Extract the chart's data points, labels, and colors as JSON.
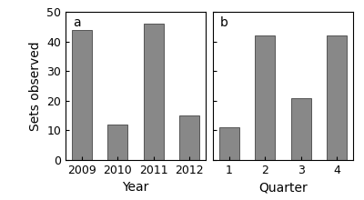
{
  "panel_a": {
    "categories": [
      "2009",
      "2010",
      "2011",
      "2012"
    ],
    "values": [
      44,
      12,
      46,
      15
    ],
    "xlabel": "Year",
    "label": "a"
  },
  "panel_b": {
    "categories": [
      "1",
      "2",
      "3",
      "4"
    ],
    "values": [
      11,
      42,
      21,
      42
    ],
    "xlabel": "Quarter",
    "label": "b"
  },
  "ylabel": "Sets observed",
  "ylim": [
    0,
    50
  ],
  "yticks": [
    0,
    10,
    20,
    30,
    40,
    50
  ],
  "bar_color": "#888888",
  "bar_edgecolor": "#555555",
  "background_color": "#ffffff",
  "label_fontsize": 10,
  "tick_fontsize": 9,
  "axis_label_fontsize": 10
}
